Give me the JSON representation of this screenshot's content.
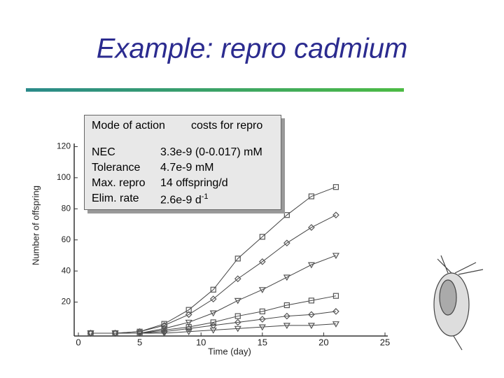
{
  "title": "Example: repro cadmium",
  "param_box": {
    "header": [
      "Mode of action",
      "costs for repro"
    ],
    "rows": [
      [
        "NEC",
        "3.3e-9 (0-0.017) mM"
      ],
      [
        "Tolerance",
        "4.7e-9 mM"
      ],
      [
        "Max. repro",
        "14 offspring/d"
      ],
      [
        "Elim. rate",
        "2.6e-9 d"
      ]
    ],
    "last_superscript": "-1"
  },
  "chart_data": {
    "type": "scatter",
    "x_label": "Time (day)",
    "y_label": "Number of offspring",
    "x": [
      1,
      3,
      5,
      7,
      9,
      11,
      13,
      15,
      17,
      19,
      21
    ],
    "series": [
      {
        "color": "#555555",
        "marker": "square",
        "values": [
          0,
          0,
          1,
          6,
          15,
          28,
          48,
          62,
          76,
          88,
          94
        ]
      },
      {
        "color": "#555555",
        "marker": "diamond",
        "values": [
          0,
          0,
          1,
          5,
          12,
          22,
          35,
          46,
          58,
          68,
          76
        ]
      },
      {
        "color": "#555555",
        "marker": "triangle",
        "values": [
          0,
          0,
          0,
          3,
          7,
          13,
          21,
          28,
          36,
          44,
          50
        ]
      },
      {
        "color": "#555555",
        "marker": "square",
        "values": [
          0,
          0,
          0,
          2,
          4,
          7,
          11,
          14,
          18,
          21,
          24
        ]
      },
      {
        "color": "#555555",
        "marker": "diamond",
        "values": [
          0,
          0,
          0,
          1,
          3,
          5,
          7,
          9,
          11,
          12,
          14
        ]
      },
      {
        "color": "#555555",
        "marker": "triangle",
        "values": [
          0,
          0,
          0,
          0,
          1,
          2,
          3,
          4,
          5,
          5,
          6
        ]
      }
    ],
    "xlim": [
      0,
      25
    ],
    "xticks": [
      0,
      5,
      10,
      15,
      20,
      25
    ],
    "ylim": [
      0,
      122
    ],
    "yticks": [
      20,
      40,
      60,
      80,
      100,
      120
    ]
  }
}
